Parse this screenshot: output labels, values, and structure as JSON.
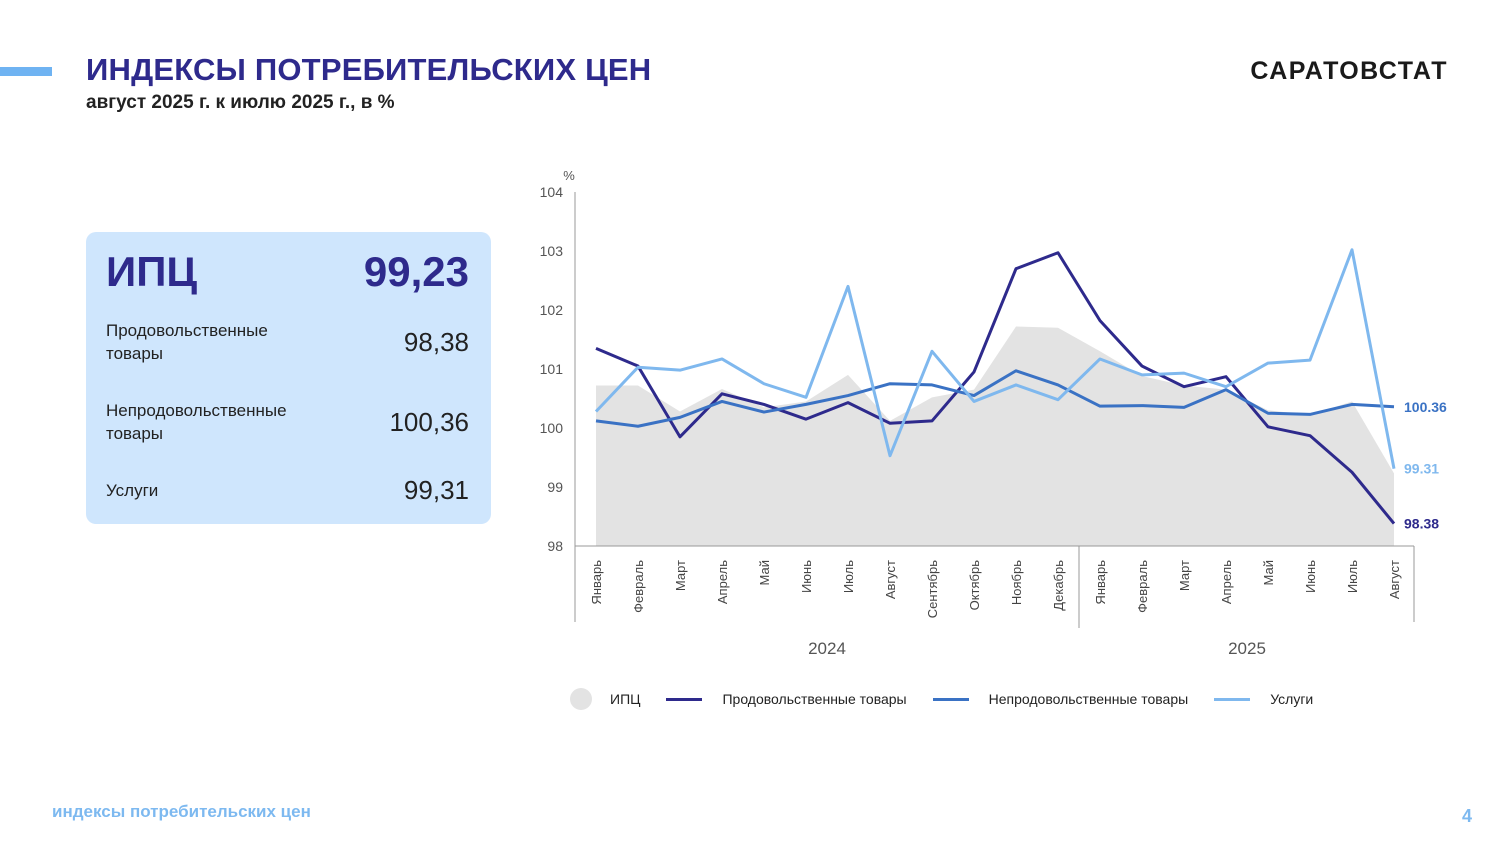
{
  "header": {
    "title": "ИНДЕКСЫ ПОТРЕБИТЕЛЬСКИХ ЦЕН",
    "subtitle": "август 2025 г. к июлю 2025 г., в %",
    "brand": "САРАТОВСТАТ"
  },
  "summary": {
    "cpi_label": "ИПЦ",
    "cpi_value": "99,23",
    "items": [
      {
        "label": "Продовольственные товары",
        "value": "98,38"
      },
      {
        "label": "Непродовольственные товары",
        "value": "100,36"
      },
      {
        "label": "Услуги",
        "value": "99,31"
      }
    ]
  },
  "colors": {
    "accent": "#6fb3f2",
    "title": "#2e2a8c",
    "panel": "#cfe6fd",
    "food": "#2e2a8c",
    "nonfood": "#3a72c4",
    "services": "#7fb8ee",
    "cpi_area": "#e3e3e3"
  },
  "chart_data": {
    "type": "line",
    "ylabel": "%",
    "ylim": [
      98,
      104
    ],
    "yticks": [
      98,
      99,
      100,
      101,
      102,
      103,
      104
    ],
    "categories": [
      "Январь",
      "Февраль",
      "Март",
      "Апрель",
      "Май",
      "Июнь",
      "Июль",
      "Август",
      "Сентябрь",
      "Октябрь",
      "Ноябрь",
      "Декабрь",
      "Январь",
      "Февраль",
      "Март",
      "Апрель",
      "Май",
      "Июнь",
      "Июль",
      "Август"
    ],
    "year_groups": [
      {
        "label": "2024",
        "start": 0,
        "end": 11
      },
      {
        "label": "2025",
        "start": 12,
        "end": 19
      }
    ],
    "series": [
      {
        "name": "ИПЦ",
        "kind": "area",
        "color": "#e3e3e3",
        "values": [
          100.72,
          100.72,
          100.28,
          100.66,
          100.35,
          100.45,
          100.9,
          100.12,
          100.52,
          100.65,
          101.72,
          101.7,
          101.3,
          100.88,
          100.72,
          100.65,
          100.3,
          100.22,
          100.45,
          99.23
        ]
      },
      {
        "name": "Продовольственные товары",
        "kind": "line",
        "color": "#2e2a8c",
        "values": [
          101.35,
          101.05,
          99.85,
          100.58,
          100.4,
          100.15,
          100.43,
          100.08,
          100.12,
          100.95,
          102.7,
          102.97,
          101.82,
          101.05,
          100.7,
          100.87,
          100.02,
          99.87,
          99.25,
          98.38
        ]
      },
      {
        "name": "Непродовольственные товары",
        "kind": "line",
        "color": "#3a72c4",
        "values": [
          100.12,
          100.03,
          100.18,
          100.45,
          100.27,
          100.4,
          100.55,
          100.75,
          100.73,
          100.55,
          100.97,
          100.73,
          100.37,
          100.38,
          100.35,
          100.65,
          100.25,
          100.23,
          100.4,
          100.36
        ]
      },
      {
        "name": "Услуги",
        "kind": "line",
        "color": "#7fb8ee",
        "values": [
          100.28,
          101.03,
          100.98,
          101.17,
          100.75,
          100.52,
          102.4,
          99.53,
          101.3,
          100.45,
          100.73,
          100.48,
          101.17,
          100.9,
          100.93,
          100.7,
          101.1,
          101.15,
          103.02,
          99.31
        ]
      }
    ],
    "end_labels": [
      {
        "series": "Непродовольственные товары",
        "text": "100.36",
        "color": "#3a72c4"
      },
      {
        "series": "Услуги",
        "text": "99.31",
        "color": "#7fb8ee"
      },
      {
        "series": "Продовольственные товары",
        "text": "98.38",
        "color": "#2e2a8c"
      }
    ],
    "legend_position": "bottom"
  },
  "footer": {
    "text": "индексы потребительских цен",
    "page": "4"
  }
}
